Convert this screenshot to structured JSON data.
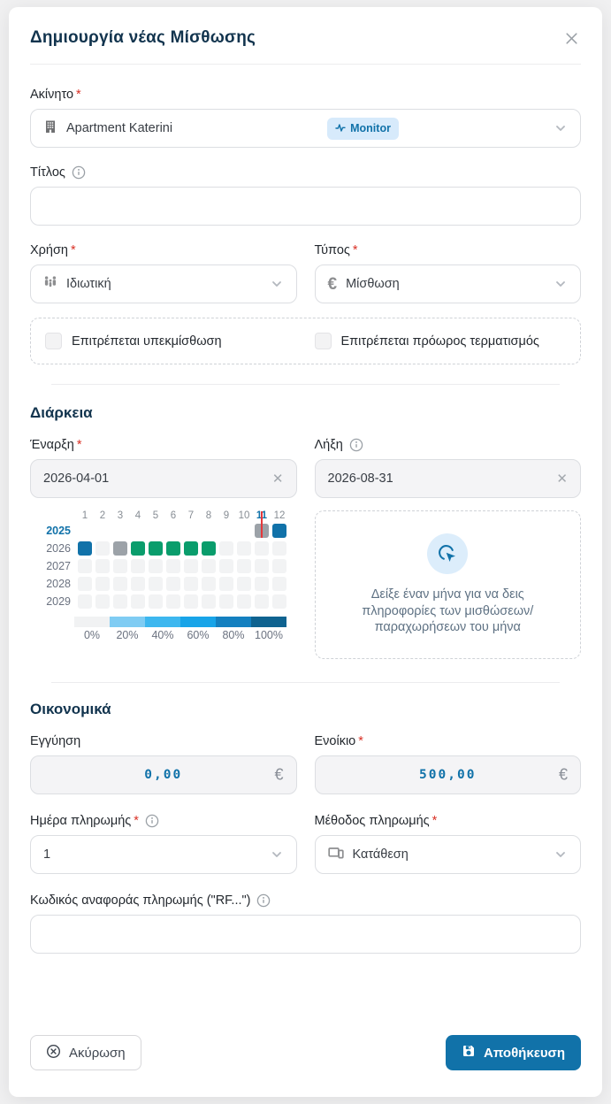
{
  "ui": {
    "required_marker": "*"
  },
  "colors": {
    "accent_blue": "#1172a9",
    "lease_green": "#0a9d6c",
    "today_red": "#e5383b",
    "badge_bg": "#d7eafb",
    "title_navy": "#12344e"
  },
  "modal": {
    "title": "Δημιουργία νέας Μίσθωσης"
  },
  "property": {
    "label": "Ακίνητο",
    "value": "Apartment Katerini",
    "badge": "Monitor"
  },
  "title_field": {
    "label": "Τίτλος",
    "value": ""
  },
  "usage": {
    "label": "Χρήση",
    "value": "Ιδιωτική"
  },
  "lease_type": {
    "label": "Τύπος",
    "value": "Μίσθωση"
  },
  "checkboxes": [
    {
      "label": "Επιτρέπεται υπεκμίσθωση",
      "checked": false
    },
    {
      "label": "Επιτρέπεται πρόωρος τερματισμός",
      "checked": false
    }
  ],
  "duration": {
    "heading": "Διάρκεια",
    "start": {
      "label": "Έναρξη",
      "value": "2026-04-01"
    },
    "end": {
      "label": "Λήξη",
      "value": "2026-08-31"
    },
    "heatmap": {
      "months": [
        "1",
        "2",
        "3",
        "4",
        "5",
        "6",
        "7",
        "8",
        "9",
        "10",
        "11",
        "12"
      ],
      "highlight_month": "11",
      "years": [
        {
          "label": "2025",
          "current": true,
          "cells": [
            "none",
            "none",
            "none",
            "none",
            "none",
            "none",
            "none",
            "none",
            "none",
            "none",
            "today",
            "blue"
          ]
        },
        {
          "label": "2026",
          "current": false,
          "cells": [
            "blue",
            "empty",
            "gray",
            "green",
            "green",
            "green",
            "green",
            "green",
            "empty",
            "empty",
            "empty",
            "empty"
          ]
        },
        {
          "label": "2027",
          "current": false,
          "cells": [
            "empty",
            "empty",
            "empty",
            "empty",
            "empty",
            "empty",
            "empty",
            "empty",
            "empty",
            "empty",
            "empty",
            "empty"
          ]
        },
        {
          "label": "2028",
          "current": false,
          "cells": [
            "empty",
            "empty",
            "empty",
            "empty",
            "empty",
            "empty",
            "empty",
            "empty",
            "empty",
            "empty",
            "empty",
            "empty"
          ]
        },
        {
          "label": "2029",
          "current": false,
          "cells": [
            "empty",
            "empty",
            "empty",
            "empty",
            "empty",
            "empty",
            "empty",
            "empty",
            "empty",
            "empty",
            "empty",
            "empty"
          ]
        }
      ],
      "legend": [
        {
          "label": "0%",
          "color": "#f1f2f3"
        },
        {
          "label": "20%",
          "color": "#7fccf3"
        },
        {
          "label": "40%",
          "color": "#3db7ef"
        },
        {
          "label": "60%",
          "color": "#18a4e8"
        },
        {
          "label": "80%",
          "color": "#1480c0"
        },
        {
          "label": "100%",
          "color": "#0f6390"
        }
      ]
    },
    "info_panel": {
      "text": "Δείξε έναν μήνα για να δεις πληροφορίες των μισθώσεων/παραχωρήσεων του μήνα"
    }
  },
  "financial": {
    "heading": "Οικονομικά",
    "deposit": {
      "label": "Εγγύηση",
      "value": "0,00",
      "currency": "€"
    },
    "rent": {
      "label": "Ενοίκιο",
      "value": "500,00",
      "currency": "€"
    },
    "payment_day": {
      "label": "Ημέρα πληρωμής",
      "value": "1"
    },
    "payment_method": {
      "label": "Μέθοδος πληρωμής",
      "value": "Κατάθεση"
    },
    "reference": {
      "label": "Κωδικός αναφοράς πληρωμής (\"RF...\")",
      "value": ""
    }
  },
  "footer": {
    "cancel_label": "Ακύρωση",
    "save_label": "Αποθήκευση"
  }
}
